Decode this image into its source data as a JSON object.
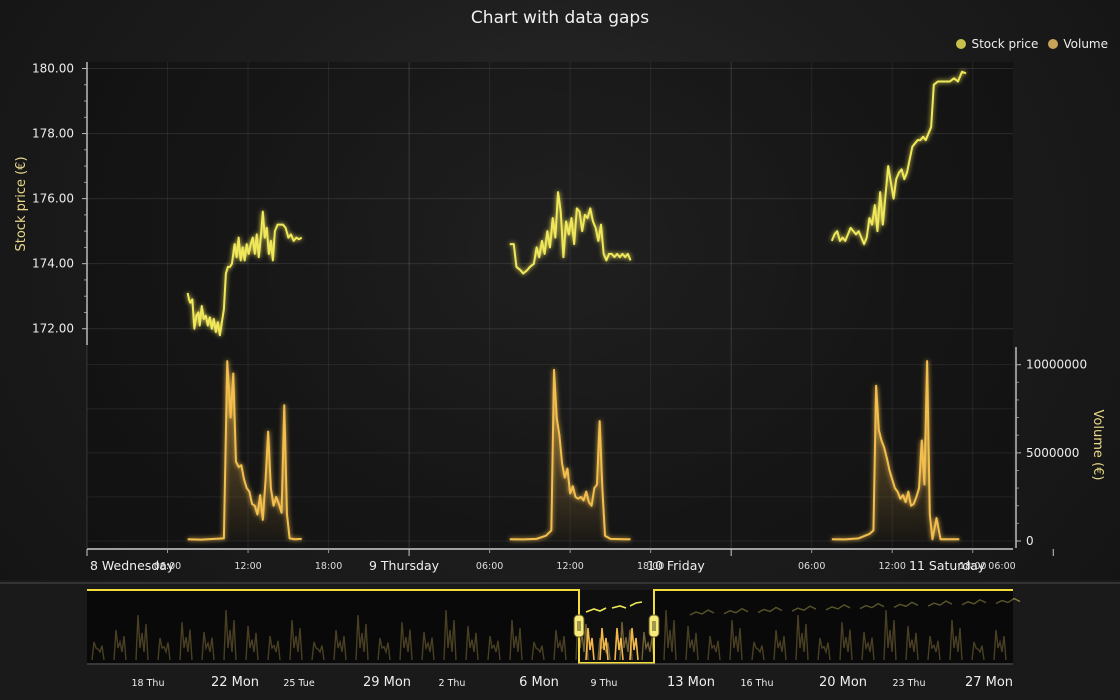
{
  "title": "Chart with data gaps",
  "legend": [
    {
      "label": "Stock price",
      "color": "#c8c04a"
    },
    {
      "label": "Volume",
      "color": "#c9a35a"
    }
  ],
  "colors": {
    "price_line": "#f0e85a",
    "volume_line": "#f2be4e",
    "navigator_line": "#f2dc3c"
  },
  "chart_data": {
    "type": "line",
    "title": "Chart with data gaps",
    "x_major_labels": [
      "8 Wednesday",
      "9 Thursday",
      "10 Friday",
      "11 Saturday"
    ],
    "x_minor_labels": [
      "06:00",
      "12:00",
      "18:00",
      "06:00",
      "12:00",
      "18:00",
      "06:00",
      "12:00",
      "18:00",
      "06:00"
    ],
    "y_axes": [
      {
        "label": "Stock price (€)",
        "ticks": [
          "172.00",
          "174.00",
          "176.00",
          "178.00",
          "180.00"
        ],
        "range": [
          171.5,
          180.2
        ]
      },
      {
        "label": "Volume (€)",
        "ticks": [
          "0",
          "5000000",
          "10000000"
        ],
        "range": [
          0,
          11000000
        ]
      }
    ],
    "series": [
      {
        "name": "Stock price",
        "segments": [
          [
            [
              7.5,
              173.1
            ],
            [
              7.6,
              172.9
            ],
            [
              7.7,
              172.8
            ],
            [
              7.85,
              172.9
            ],
            [
              8.0,
              172.0
            ],
            [
              8.15,
              172.4
            ],
            [
              8.3,
              172.5
            ],
            [
              8.4,
              172.1
            ],
            [
              8.55,
              172.7
            ],
            [
              8.7,
              172.3
            ],
            [
              8.85,
              172.4
            ],
            [
              9.0,
              172.1
            ],
            [
              9.15,
              172.35
            ],
            [
              9.3,
              172.0
            ],
            [
              9.45,
              172.3
            ],
            [
              9.6,
              171.9
            ],
            [
              9.75,
              172.2
            ],
            [
              9.9,
              171.8
            ],
            [
              10.05,
              172.2
            ],
            [
              10.2,
              172.6
            ],
            [
              10.35,
              173.7
            ],
            [
              10.5,
              173.9
            ],
            [
              10.65,
              173.9
            ],
            [
              10.8,
              174.0
            ],
            [
              11.0,
              174.6
            ],
            [
              11.15,
              174.2
            ],
            [
              11.3,
              174.8
            ],
            [
              11.45,
              174.1
            ],
            [
              11.6,
              174.5
            ],
            [
              11.75,
              174.1
            ],
            [
              11.9,
              174.6
            ],
            [
              12.05,
              174.3
            ],
            [
              12.2,
              174.6
            ],
            [
              12.35,
              174.8
            ],
            [
              12.5,
              174.3
            ],
            [
              12.65,
              174.9
            ],
            [
              12.8,
              174.2
            ],
            [
              12.95,
              174.8
            ],
            [
              13.1,
              175.6
            ],
            [
              13.25,
              174.8
            ],
            [
              13.4,
              175.1
            ],
            [
              13.55,
              174.3
            ],
            [
              13.7,
              174.7
            ],
            [
              13.85,
              174.1
            ],
            [
              14.0,
              175.0
            ],
            [
              14.2,
              175.2
            ],
            [
              14.4,
              175.2
            ],
            [
              14.6,
              175.2
            ],
            [
              14.8,
              175.1
            ],
            [
              15.0,
              174.8
            ],
            [
              15.2,
              174.9
            ],
            [
              15.4,
              174.7
            ],
            [
              15.6,
              174.8
            ],
            [
              15.8,
              174.75
            ],
            [
              16.0,
              174.8
            ]
          ],
          [
            [
              31.5,
              174.6
            ],
            [
              31.8,
              174.6
            ],
            [
              32.0,
              173.9
            ],
            [
              32.3,
              173.8
            ],
            [
              32.5,
              173.7
            ],
            [
              32.8,
              173.8
            ],
            [
              33.0,
              173.9
            ],
            [
              33.3,
              174.0
            ],
            [
              33.5,
              174.5
            ],
            [
              33.7,
              174.2
            ],
            [
              33.9,
              174.7
            ],
            [
              34.1,
              174.3
            ],
            [
              34.3,
              175.0
            ],
            [
              34.5,
              174.5
            ],
            [
              34.7,
              175.4
            ],
            [
              34.9,
              174.8
            ],
            [
              35.1,
              176.2
            ],
            [
              35.3,
              175.6
            ],
            [
              35.5,
              174.2
            ],
            [
              35.7,
              175.3
            ],
            [
              35.9,
              174.9
            ],
            [
              36.1,
              175.4
            ],
            [
              36.3,
              174.6
            ],
            [
              36.5,
              175.7
            ],
            [
              36.7,
              175.6
            ],
            [
              36.9,
              175.0
            ],
            [
              37.1,
              175.5
            ],
            [
              37.3,
              175.4
            ],
            [
              37.5,
              175.7
            ],
            [
              37.7,
              175.3
            ],
            [
              37.9,
              175.1
            ],
            [
              38.1,
              174.7
            ],
            [
              38.3,
              175.2
            ],
            [
              38.5,
              174.3
            ],
            [
              38.7,
              174.1
            ],
            [
              38.9,
              174.3
            ],
            [
              39.1,
              174.3
            ],
            [
              39.3,
              174.2
            ],
            [
              39.5,
              174.3
            ],
            [
              39.7,
              174.2
            ],
            [
              39.9,
              174.3
            ],
            [
              40.1,
              174.2
            ],
            [
              40.3,
              174.3
            ],
            [
              40.5,
              174.1
            ]
          ],
          [
            [
              55.5,
              174.7
            ],
            [
              55.7,
              174.9
            ],
            [
              55.9,
              175.0
            ],
            [
              56.1,
              174.7
            ],
            [
              56.3,
              174.8
            ],
            [
              56.5,
              174.7
            ],
            [
              56.7,
              174.9
            ],
            [
              56.9,
              175.1
            ],
            [
              57.1,
              175.0
            ],
            [
              57.3,
              174.9
            ],
            [
              57.5,
              175.0
            ],
            [
              57.7,
              174.8
            ],
            [
              57.9,
              174.6
            ],
            [
              58.1,
              174.8
            ],
            [
              58.3,
              175.4
            ],
            [
              58.5,
              175.2
            ],
            [
              58.7,
              175.8
            ],
            [
              58.9,
              175.0
            ],
            [
              59.1,
              176.2
            ],
            [
              59.3,
              175.2
            ],
            [
              59.5,
              176.1
            ],
            [
              59.7,
              177.0
            ],
            [
              59.9,
              176.5
            ],
            [
              60.1,
              176.0
            ],
            [
              60.3,
              176.6
            ],
            [
              60.5,
              176.8
            ],
            [
              60.7,
              176.9
            ],
            [
              60.9,
              176.6
            ],
            [
              61.1,
              176.8
            ],
            [
              61.3,
              177.2
            ],
            [
              61.5,
              177.6
            ],
            [
              61.7,
              177.7
            ],
            [
              61.9,
              177.8
            ],
            [
              62.1,
              177.8
            ],
            [
              62.3,
              177.9
            ],
            [
              62.5,
              177.8
            ],
            [
              62.7,
              178.0
            ],
            [
              62.9,
              178.2
            ],
            [
              63.1,
              179.5
            ],
            [
              63.4,
              179.6
            ],
            [
              63.7,
              179.6
            ],
            [
              64.0,
              179.6
            ],
            [
              64.3,
              179.6
            ],
            [
              64.6,
              179.7
            ],
            [
              64.9,
              179.6
            ],
            [
              65.2,
              179.9
            ],
            [
              65.5,
              179.85
            ]
          ]
        ]
      },
      {
        "name": "Volume",
        "segments": [
          [
            [
              7.5,
              100000
            ],
            [
              8.5,
              80000
            ],
            [
              9.5,
              120000
            ],
            [
              10.2,
              150000
            ],
            [
              10.45,
              10200000
            ],
            [
              10.7,
              7000000
            ],
            [
              10.9,
              9500000
            ],
            [
              11.1,
              4500000
            ],
            [
              11.3,
              4200000
            ],
            [
              11.5,
              4300000
            ],
            [
              11.7,
              3500000
            ],
            [
              11.9,
              3000000
            ],
            [
              12.1,
              2800000
            ],
            [
              12.3,
              2100000
            ],
            [
              12.5,
              2000000
            ],
            [
              12.7,
              1500000
            ],
            [
              12.9,
              2600000
            ],
            [
              13.1,
              1200000
            ],
            [
              13.3,
              3400000
            ],
            [
              13.5,
              6200000
            ],
            [
              13.7,
              3000000
            ],
            [
              13.9,
              2000000
            ],
            [
              14.1,
              2500000
            ],
            [
              14.3,
              2100000
            ],
            [
              14.5,
              1600000
            ],
            [
              14.7,
              7700000
            ],
            [
              14.9,
              1500000
            ],
            [
              15.1,
              150000
            ],
            [
              15.5,
              100000
            ],
            [
              16.0,
              120000
            ]
          ],
          [
            [
              31.5,
              100000
            ],
            [
              32.5,
              90000
            ],
            [
              33.5,
              120000
            ],
            [
              34.2,
              300000
            ],
            [
              34.6,
              600000
            ],
            [
              34.8,
              9700000
            ],
            [
              35.0,
              7000000
            ],
            [
              35.2,
              6000000
            ],
            [
              35.4,
              4400000
            ],
            [
              35.6,
              3600000
            ],
            [
              35.8,
              4100000
            ],
            [
              36.0,
              2700000
            ],
            [
              36.2,
              3100000
            ],
            [
              36.4,
              2500000
            ],
            [
              36.6,
              2400000
            ],
            [
              36.8,
              2500000
            ],
            [
              37.0,
              2300000
            ],
            [
              37.2,
              2800000
            ],
            [
              37.4,
              2200000
            ],
            [
              37.6,
              2000000
            ],
            [
              37.8,
              3000000
            ],
            [
              38.0,
              3200000
            ],
            [
              38.2,
              6800000
            ],
            [
              38.4,
              3000000
            ],
            [
              38.6,
              300000
            ],
            [
              39.0,
              120000
            ],
            [
              40.0,
              100000
            ],
            [
              40.5,
              100000
            ]
          ],
          [
            [
              55.5,
              100000
            ],
            [
              56.5,
              90000
            ],
            [
              57.5,
              150000
            ],
            [
              58.3,
              400000
            ],
            [
              58.6,
              600000
            ],
            [
              58.8,
              8800000
            ],
            [
              59.0,
              6300000
            ],
            [
              59.2,
              5700000
            ],
            [
              59.4,
              5300000
            ],
            [
              59.6,
              4700000
            ],
            [
              59.8,
              4000000
            ],
            [
              60.0,
              3500000
            ],
            [
              60.2,
              3000000
            ],
            [
              60.4,
              2800000
            ],
            [
              60.6,
              2400000
            ],
            [
              60.8,
              2600000
            ],
            [
              61.0,
              2200000
            ],
            [
              61.2,
              2800000
            ],
            [
              61.4,
              2000000
            ],
            [
              61.6,
              2100000
            ],
            [
              61.8,
              2500000
            ],
            [
              62.0,
              3000000
            ],
            [
              62.2,
              5700000
            ],
            [
              62.4,
              3200000
            ],
            [
              62.6,
              10200000
            ],
            [
              62.8,
              1500000
            ],
            [
              63.0,
              100000
            ],
            [
              63.3,
              1300000
            ],
            [
              63.6,
              100000
            ],
            [
              64.5,
              100000
            ],
            [
              65.0,
              100000
            ]
          ]
        ]
      }
    ],
    "navigator": {
      "labels": [
        "18 Thu",
        "22 Mon",
        "25 Tue",
        "29 Mon",
        "2 Thu",
        "6 Mon",
        "9 Thu",
        "13 Mon",
        "16 Thu",
        "20 Mon",
        "23 Thu",
        "27 Mon"
      ]
    }
  }
}
